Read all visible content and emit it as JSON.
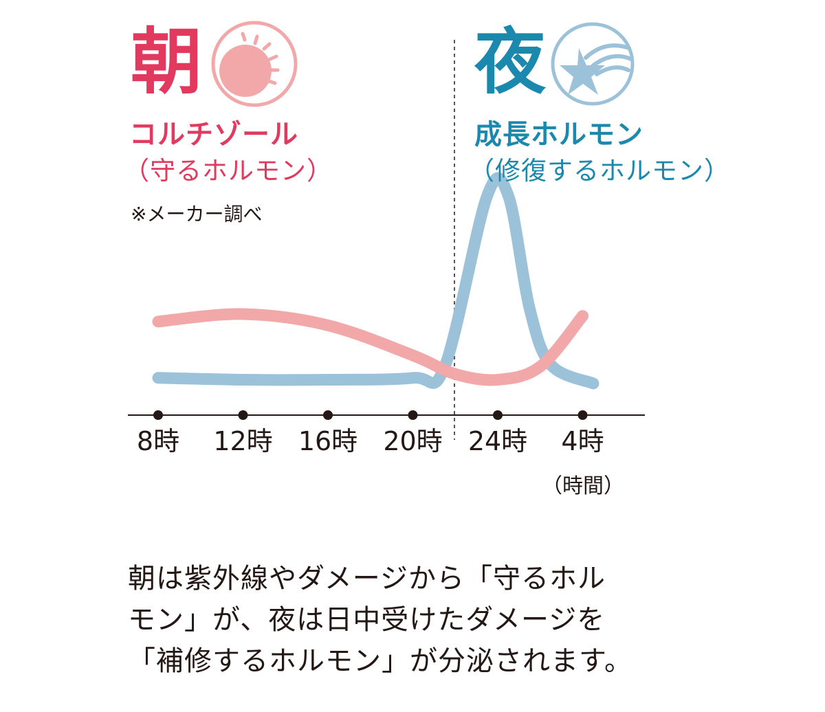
{
  "colors": {
    "morning": "#e23a5e",
    "morning_line": "#f2a7a8",
    "night": "#1b88ad",
    "night_line": "#9cc2d9",
    "axis": "#231815"
  },
  "morning": {
    "kanji": "朝",
    "hormone": "コルチゾール",
    "role": "（守るホルモン）",
    "icon": "sun-icon"
  },
  "night": {
    "kanji": "夜",
    "hormone": "成長ホルモン",
    "role": "（修復するホルモン）",
    "icon": "shooting-star-icon"
  },
  "note": "※メーカー調べ",
  "caption_lines": [
    "朝は紫外線やダメージから「守るホル",
    "モン」が、夜は日中受けたダメージを",
    "「補修するホルモン」が分泌されます。"
  ],
  "chart_data": {
    "type": "line",
    "x_ticks": [
      "8時",
      "12時",
      "16時",
      "20時",
      "24時",
      "4時"
    ],
    "xlabel": "（時間）",
    "ylabel": "",
    "title": "",
    "divider_between": [
      "20時",
      "24時"
    ],
    "series": [
      {
        "name": "コルチゾール",
        "x": [
          8,
          12,
          16,
          20,
          22,
          24,
          26,
          28
        ],
        "values": [
          33,
          37,
          31,
          15,
          5,
          2,
          9,
          36
        ]
      },
      {
        "name": "成長ホルモン",
        "x": [
          8,
          12,
          16,
          20,
          21.5,
          23.5,
          24.5,
          25.5,
          26.5,
          28.5
        ],
        "values": [
          3,
          2,
          2,
          3,
          9,
          100,
          100,
          40,
          10,
          0
        ]
      }
    ]
  }
}
